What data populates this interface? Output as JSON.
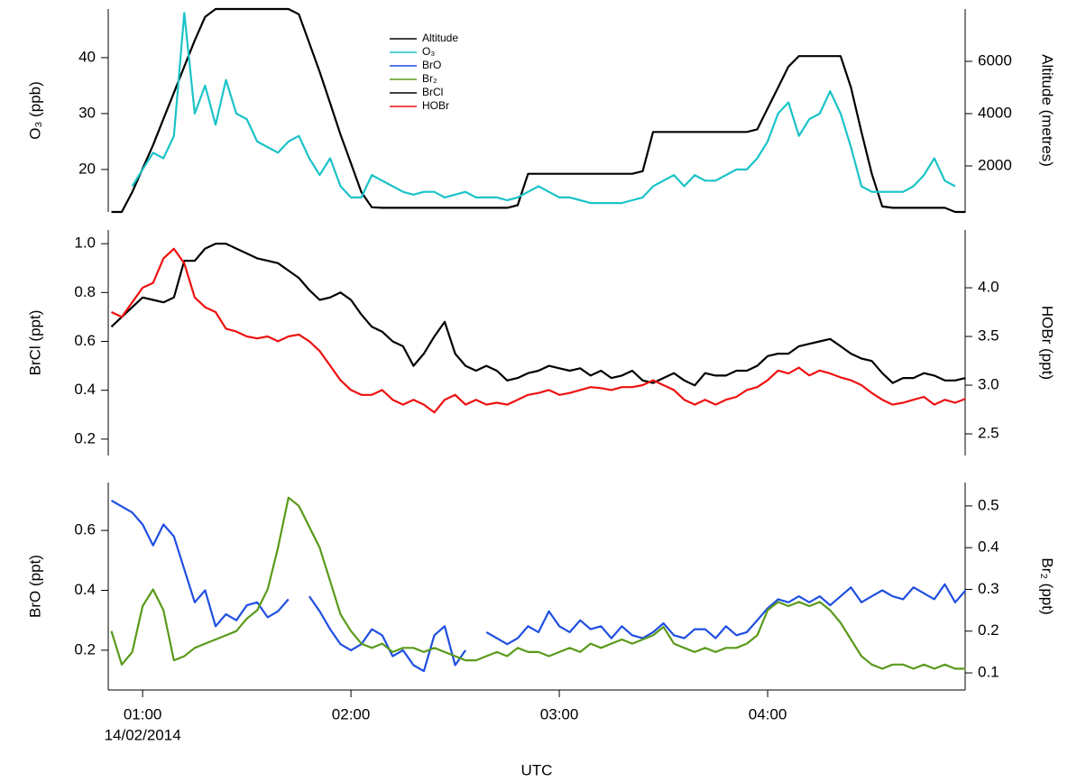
{
  "chart_data": [
    {
      "type": "line",
      "legend": true,
      "y_label": "O₃ (ppb)",
      "y2_label": "Altitude (metres)",
      "x": [
        0.85,
        0.9,
        0.95,
        1.0,
        1.05,
        1.1,
        1.15,
        1.2,
        1.25,
        1.3,
        1.35,
        1.4,
        1.45,
        1.5,
        1.55,
        1.6,
        1.65,
        1.7,
        1.75,
        1.8,
        1.85,
        1.9,
        1.95,
        2.0,
        2.05,
        2.1,
        2.15,
        2.2,
        2.25,
        2.3,
        2.35,
        2.4,
        2.45,
        2.5,
        2.55,
        2.6,
        2.65,
        2.7,
        2.75,
        2.8,
        2.85,
        2.9,
        2.95,
        3.0,
        3.05,
        3.1,
        3.15,
        3.2,
        3.25,
        3.3,
        3.35,
        3.4,
        3.45,
        3.5,
        3.55,
        3.6,
        3.65,
        3.7,
        3.75,
        3.8,
        3.85,
        3.9,
        3.95,
        4.0,
        4.05,
        4.1,
        4.15,
        4.2,
        4.25,
        4.3,
        4.35,
        4.4,
        4.45,
        4.5,
        4.55,
        4.6,
        4.65,
        4.7,
        4.75,
        4.8,
        4.85,
        4.9,
        4.95
      ],
      "xlim": [
        0.835,
        4.948
      ],
      "ylim": [
        12.4,
        48.7
      ],
      "yticks": [
        20,
        30,
        40
      ],
      "y2lim": [
        240,
        8000
      ],
      "y2ticks": [
        2000,
        4000,
        6000
      ],
      "series": [
        {
          "name": "Altitude",
          "color": "#000000",
          "axis": "y2",
          "values": [
            240,
            240,
            1000,
            1900,
            2800,
            3800,
            4800,
            5800,
            6800,
            7700,
            8000,
            8000,
            8000,
            8000,
            8000,
            8000,
            8000,
            8000,
            7800,
            6700,
            5600,
            4400,
            3200,
            2100,
            1000,
            420,
            400,
            400,
            400,
            400,
            400,
            400,
            400,
            400,
            400,
            400,
            400,
            400,
            400,
            500,
            1700,
            1700,
            1700,
            1700,
            1700,
            1700,
            1700,
            1700,
            1700,
            1700,
            1700,
            1800,
            3300,
            3300,
            3300,
            3300,
            3300,
            3300,
            3300,
            3300,
            3300,
            3300,
            3400,
            4200,
            5000,
            5800,
            6200,
            6200,
            6200,
            6200,
            6200,
            5000,
            3300,
            1700,
            450,
            400,
            400,
            400,
            400,
            400,
            400,
            240,
            240
          ]
        },
        {
          "name": "O₃",
          "color": "#1bc3c8",
          "values": [
            null,
            null,
            17,
            20,
            23,
            22,
            26,
            48,
            30,
            35,
            28,
            36,
            30,
            29,
            25,
            24,
            23,
            25,
            26,
            22,
            19,
            22,
            17,
            15,
            15,
            19,
            18,
            17,
            16,
            15.5,
            16,
            16,
            15,
            15.5,
            16,
            15,
            15,
            15,
            14.5,
            15,
            16,
            17,
            16,
            15,
            15,
            14.5,
            14,
            14,
            14,
            14,
            14.5,
            15,
            17,
            18,
            19,
            17,
            19,
            18,
            18,
            19,
            20,
            20,
            22,
            25,
            30,
            32,
            26,
            29,
            30,
            34,
            30,
            24,
            17,
            16,
            16,
            16,
            16,
            17,
            19,
            22,
            18,
            17,
            null
          ]
        }
      ]
    },
    {
      "type": "line",
      "y_label": "BrCl (ppt)",
      "y2_label": "HOBr (ppt)",
      "x": [
        0.85,
        0.9,
        0.95,
        1.0,
        1.05,
        1.1,
        1.15,
        1.2,
        1.25,
        1.3,
        1.35,
        1.4,
        1.45,
        1.5,
        1.55,
        1.6,
        1.65,
        1.7,
        1.75,
        1.8,
        1.85,
        1.9,
        1.95,
        2.0,
        2.05,
        2.1,
        2.15,
        2.2,
        2.25,
        2.3,
        2.35,
        2.4,
        2.45,
        2.5,
        2.55,
        2.6,
        2.65,
        2.7,
        2.75,
        2.8,
        2.85,
        2.9,
        2.95,
        3.0,
        3.05,
        3.1,
        3.15,
        3.2,
        3.25,
        3.3,
        3.35,
        3.4,
        3.45,
        3.5,
        3.55,
        3.6,
        3.65,
        3.7,
        3.75,
        3.8,
        3.85,
        3.9,
        3.95,
        4.0,
        4.05,
        4.1,
        4.15,
        4.2,
        4.25,
        4.3,
        4.35,
        4.4,
        4.45,
        4.5,
        4.55,
        4.6,
        4.65,
        4.7,
        4.75,
        4.8,
        4.85,
        4.9,
        4.95
      ],
      "xlim": [
        0.835,
        4.948
      ],
      "ylim": [
        0.133,
        1.056
      ],
      "yticks": [
        0.2,
        0.4,
        0.6,
        0.8,
        {
          "value": 1,
          "label": "1.0"
        }
      ],
      "y2lim": [
        2.278,
        4.593
      ],
      "y2ticks": [
        2.5,
        {
          "value": 3,
          "label": "3.0"
        },
        3.5,
        {
          "value": 4,
          "label": "4.0"
        }
      ],
      "series": [
        {
          "name": "BrCl",
          "color": "#000000",
          "values": [
            0.66,
            0.7,
            0.74,
            0.78,
            0.77,
            0.76,
            0.78,
            0.93,
            0.93,
            0.98,
            1.0,
            1.0,
            0.98,
            0.96,
            0.94,
            0.93,
            0.92,
            0.89,
            0.86,
            0.81,
            0.77,
            0.78,
            0.8,
            0.77,
            0.71,
            0.66,
            0.64,
            0.6,
            0.58,
            0.5,
            0.55,
            0.62,
            0.68,
            0.55,
            0.5,
            0.48,
            0.5,
            0.48,
            0.44,
            0.45,
            0.47,
            0.48,
            0.5,
            0.49,
            0.48,
            0.49,
            0.46,
            0.48,
            0.45,
            0.46,
            0.48,
            0.44,
            0.43,
            0.45,
            0.47,
            0.44,
            0.42,
            0.47,
            0.46,
            0.46,
            0.48,
            0.48,
            0.5,
            0.54,
            0.55,
            0.55,
            0.58,
            0.59,
            0.6,
            0.61,
            0.58,
            0.55,
            0.53,
            0.52,
            0.47,
            0.43,
            0.45,
            0.45,
            0.47,
            0.46,
            0.44,
            0.44,
            0.45
          ]
        },
        {
          "name": "HOBr",
          "color": "#ee1111",
          "axis": "y2",
          "values": [
            3.75,
            3.7,
            3.85,
            4.0,
            4.05,
            4.3,
            4.4,
            4.25,
            3.9,
            3.8,
            3.75,
            3.58,
            3.55,
            3.5,
            3.48,
            3.5,
            3.45,
            3.5,
            3.52,
            3.45,
            3.35,
            3.2,
            3.05,
            2.95,
            2.9,
            2.9,
            2.95,
            2.85,
            2.8,
            2.85,
            2.8,
            2.72,
            2.85,
            2.9,
            2.8,
            2.85,
            2.8,
            2.82,
            2.8,
            2.85,
            2.9,
            2.92,
            2.95,
            2.9,
            2.92,
            2.95,
            2.98,
            2.97,
            2.95,
            2.98,
            2.98,
            3.0,
            3.05,
            3.0,
            2.95,
            2.85,
            2.8,
            2.85,
            2.8,
            2.85,
            2.88,
            2.95,
            2.98,
            3.05,
            3.15,
            3.12,
            3.18,
            3.1,
            3.15,
            3.12,
            3.08,
            3.05,
            3.0,
            2.92,
            2.85,
            2.8,
            2.82,
            2.85,
            2.88,
            2.8,
            2.85,
            2.82,
            2.86
          ]
        }
      ]
    },
    {
      "type": "line",
      "y_label": "BrO (ppt)",
      "y2_label": "Br₂ (ppt)",
      "x_label": "UTC",
      "date_label": "14/02/2014",
      "x": [
        0.85,
        0.9,
        0.95,
        1.0,
        1.05,
        1.1,
        1.15,
        1.2,
        1.25,
        1.3,
        1.35,
        1.4,
        1.45,
        1.5,
        1.55,
        1.6,
        1.65,
        1.7,
        1.75,
        1.8,
        1.85,
        1.9,
        1.95,
        2.0,
        2.05,
        2.1,
        2.15,
        2.2,
        2.25,
        2.3,
        2.35,
        2.4,
        2.45,
        2.5,
        2.55,
        2.6,
        2.65,
        2.7,
        2.75,
        2.8,
        2.85,
        2.9,
        2.95,
        3.0,
        3.05,
        3.1,
        3.15,
        3.2,
        3.25,
        3.3,
        3.35,
        3.4,
        3.45,
        3.5,
        3.55,
        3.6,
        3.65,
        3.7,
        3.75,
        3.8,
        3.85,
        3.9,
        3.95,
        4.0,
        4.05,
        4.1,
        4.15,
        4.2,
        4.25,
        4.3,
        4.35,
        4.4,
        4.45,
        4.5,
        4.55,
        4.6,
        4.65,
        4.7,
        4.75,
        4.8,
        4.85,
        4.9,
        4.95
      ],
      "xlim": [
        0.835,
        4.948
      ],
      "xticks": [
        {
          "value": 1,
          "label": "01:00"
        },
        {
          "value": 2,
          "label": "02:00"
        },
        {
          "value": 3,
          "label": "03:00"
        },
        {
          "value": 4,
          "label": "04:00"
        }
      ],
      "ylim": [
        0.067,
        0.76
      ],
      "yticks": [
        0.2,
        0.4,
        0.6
      ],
      "y2lim": [
        0.059,
        0.556
      ],
      "y2ticks": [
        0.1,
        0.2,
        0.3,
        0.4,
        0.5
      ],
      "series": [
        {
          "name": "BrO",
          "color": "#1f4fe0",
          "values": [
            0.7,
            0.68,
            0.66,
            0.62,
            0.55,
            0.62,
            0.58,
            0.47,
            0.36,
            0.4,
            0.28,
            0.32,
            0.3,
            0.35,
            0.36,
            0.31,
            0.33,
            0.37,
            null,
            0.38,
            0.33,
            0.27,
            0.22,
            0.2,
            0.22,
            0.27,
            0.25,
            0.18,
            0.2,
            0.15,
            0.13,
            0.25,
            0.28,
            0.15,
            0.2,
            null,
            0.26,
            0.24,
            0.22,
            0.24,
            0.28,
            0.26,
            0.33,
            0.28,
            0.26,
            0.3,
            0.27,
            0.28,
            0.24,
            0.28,
            0.25,
            0.24,
            0.26,
            0.29,
            0.25,
            0.24,
            0.27,
            0.27,
            0.24,
            0.28,
            0.25,
            0.26,
            0.3,
            0.34,
            0.37,
            0.36,
            0.38,
            0.36,
            0.38,
            0.35,
            0.38,
            0.41,
            0.36,
            0.38,
            0.4,
            0.38,
            0.37,
            0.41,
            0.39,
            0.37,
            0.42,
            0.36,
            0.4
          ]
        },
        {
          "name": "Br₂",
          "color": "#5a9a1a",
          "axis": "y2",
          "values": [
            0.2,
            0.12,
            0.15,
            0.26,
            0.3,
            0.25,
            0.13,
            0.14,
            0.16,
            0.17,
            0.18,
            0.19,
            0.2,
            0.23,
            0.25,
            0.3,
            0.4,
            0.52,
            0.5,
            0.45,
            0.4,
            0.32,
            0.24,
            0.2,
            0.17,
            0.16,
            0.17,
            0.15,
            0.16,
            0.16,
            0.15,
            0.16,
            0.15,
            0.14,
            0.13,
            0.13,
            0.14,
            0.15,
            0.14,
            0.16,
            0.15,
            0.15,
            0.14,
            0.15,
            0.16,
            0.15,
            0.17,
            0.16,
            0.17,
            0.18,
            0.17,
            0.18,
            0.19,
            0.21,
            0.17,
            0.16,
            0.15,
            0.16,
            0.15,
            0.16,
            0.16,
            0.17,
            0.19,
            0.25,
            0.27,
            0.26,
            0.27,
            0.26,
            0.27,
            0.25,
            0.22,
            0.18,
            0.14,
            0.12,
            0.11,
            0.12,
            0.12,
            0.11,
            0.12,
            0.11,
            0.12,
            0.11,
            0.11
          ]
        }
      ]
    }
  ]
}
